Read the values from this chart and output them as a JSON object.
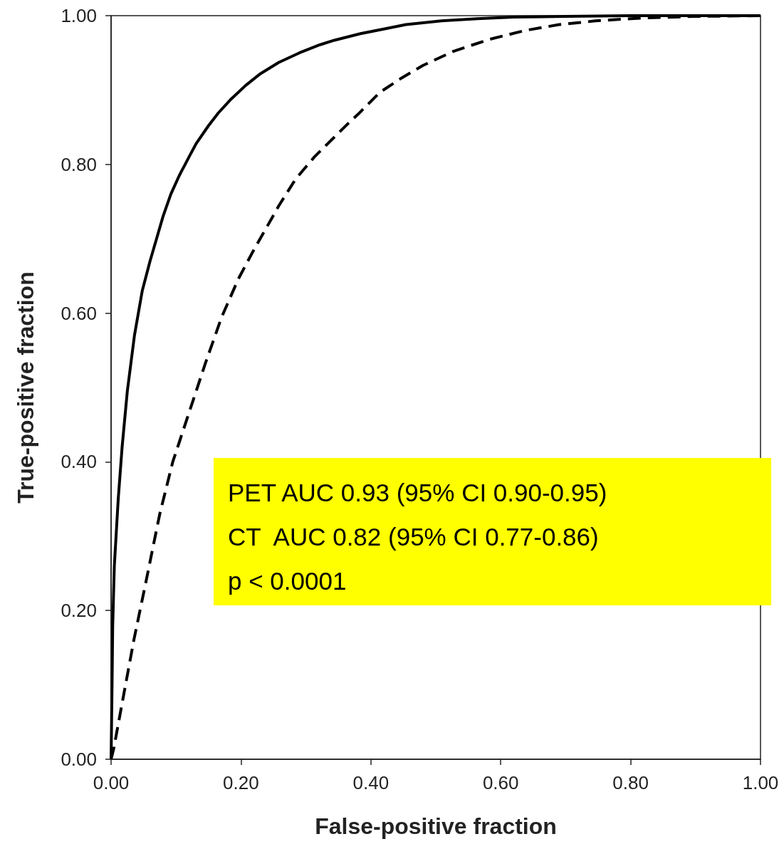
{
  "chart_data": {
    "type": "line",
    "xlabel": "False-positive fraction",
    "ylabel": "True-positive fraction",
    "xlim": [
      0,
      1
    ],
    "ylim": [
      0,
      1
    ],
    "xticks": [
      {
        "value": 0,
        "label": "0.00"
      },
      {
        "value": 0.2,
        "label": "0.20"
      },
      {
        "value": 0.4,
        "label": "0.40"
      },
      {
        "value": 0.6,
        "label": "0.60"
      },
      {
        "value": 0.8,
        "label": "0.80"
      },
      {
        "value": 1,
        "label": "1.00"
      }
    ],
    "yticks": [
      {
        "value": 0,
        "label": "0.00"
      },
      {
        "value": 0.2,
        "label": "0.20"
      },
      {
        "value": 0.4,
        "label": "0.40"
      },
      {
        "value": 0.6,
        "label": "0.60"
      },
      {
        "value": 0.8,
        "label": "0.80"
      },
      {
        "value": 1,
        "label": "1.00"
      }
    ],
    "grid": false,
    "marker": "none",
    "annotations": [
      "PET AUC 0.93 (95% CI 0.90-0.95)",
      "CT  AUC 0.82 (95% CI 0.77-0.86)",
      "p < 0.0001"
    ],
    "series": [
      {
        "color": "#000000",
        "line_style": "solid",
        "x": [
          0,
          0.0015,
          0.0025,
          0.005,
          0.011,
          0.017,
          0.025,
          0.036,
          0.048,
          0.06,
          0.07,
          0.08,
          0.092,
          0.105,
          0.12,
          0.131,
          0.15,
          0.165,
          0.185,
          0.207,
          0.23,
          0.258,
          0.29,
          0.322,
          0.344,
          0.385,
          0.42,
          0.454,
          0.509,
          0.564,
          0.62,
          0.7,
          0.8,
          0.9,
          1
        ],
        "values": [
          0,
          0.1,
          0.18,
          0.26,
          0.35,
          0.42,
          0.495,
          0.57,
          0.63,
          0.67,
          0.7,
          0.73,
          0.76,
          0.785,
          0.81,
          0.828,
          0.852,
          0.869,
          0.888,
          0.906,
          0.922,
          0.937,
          0.95,
          0.961,
          0.967,
          0.976,
          0.982,
          0.988,
          0.993,
          0.996,
          0.998,
          0.999,
          1,
          1,
          1
        ]
      },
      {
        "color": "#000000",
        "line_style": "dashed",
        "x": [
          0,
          0.004,
          0.018,
          0.035,
          0.054,
          0.075,
          0.095,
          0.12,
          0.145,
          0.17,
          0.196,
          0.221,
          0.24,
          0.258,
          0.284,
          0.313,
          0.343,
          0.365,
          0.381,
          0.414,
          0.447,
          0.48,
          0.527,
          0.582,
          0.637,
          0.69,
          0.746,
          0.82,
          0.9,
          1
        ],
        "values": [
          0,
          0.014,
          0.08,
          0.16,
          0.24,
          0.33,
          0.4,
          0.466,
          0.532,
          0.594,
          0.646,
          0.687,
          0.716,
          0.744,
          0.78,
          0.81,
          0.836,
          0.855,
          0.868,
          0.897,
          0.916,
          0.933,
          0.952,
          0.968,
          0.98,
          0.988,
          0.993,
          0.997,
          0.999,
          1
        ]
      }
    ]
  }
}
